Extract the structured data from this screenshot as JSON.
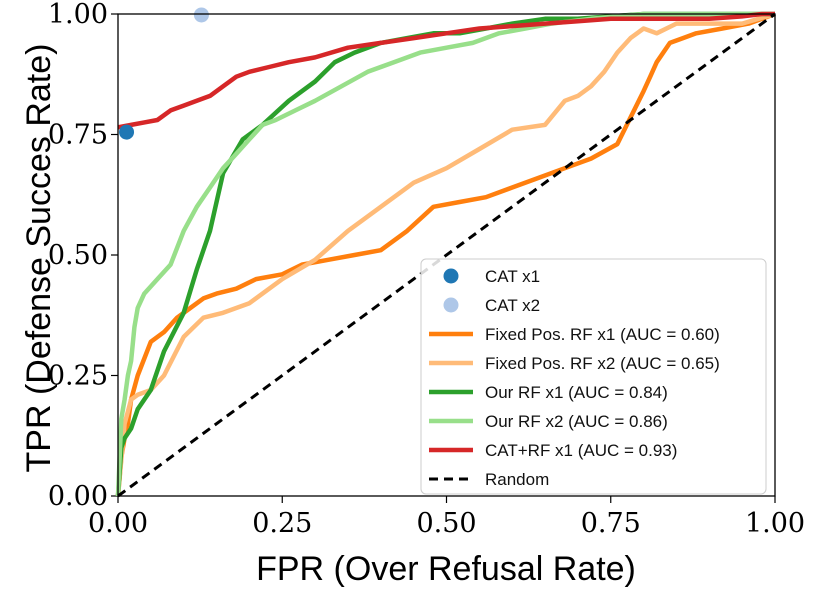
{
  "chart_data": {
    "type": "line",
    "title": "",
    "xlabel": "FPR (Over Refusal Rate)",
    "ylabel": "TPR (Defense Succes Rate)",
    "xlim": [
      0,
      1
    ],
    "ylim": [
      0,
      1
    ],
    "xticks": [
      "0.00",
      "0.25",
      "0.50",
      "0.75",
      "1.00"
    ],
    "yticks": [
      "0.00",
      "0.25",
      "0.50",
      "0.75",
      "1.00"
    ],
    "xtick_values": [
      0,
      0.25,
      0.5,
      0.75,
      1.0
    ],
    "ytick_values": [
      0,
      0.25,
      0.5,
      0.75,
      1.0
    ],
    "grid": false,
    "legend_position": "bottom-right",
    "points": [
      {
        "name": "CAT x1",
        "x": 0.013,
        "y": 0.755,
        "color": "#1f77b4"
      },
      {
        "name": "CAT x2",
        "x": 0.127,
        "y": 0.998,
        "color": "#aec7e8"
      }
    ],
    "series": [
      {
        "name": "Fixed Pos. RF x1 (AUC = 0.60)",
        "color": "#ff7f0e",
        "x": [
          0,
          0.005,
          0.01,
          0.015,
          0.02,
          0.03,
          0.05,
          0.07,
          0.09,
          0.11,
          0.13,
          0.15,
          0.18,
          0.21,
          0.25,
          0.28,
          0.32,
          0.36,
          0.4,
          0.44,
          0.48,
          0.52,
          0.56,
          0.6,
          0.64,
          0.68,
          0.72,
          0.76,
          0.8,
          0.81,
          0.82,
          0.84,
          0.86,
          0.88,
          0.92,
          0.96,
          1.0
        ],
        "y": [
          0,
          0.08,
          0.12,
          0.15,
          0.2,
          0.25,
          0.32,
          0.34,
          0.37,
          0.39,
          0.41,
          0.42,
          0.43,
          0.45,
          0.46,
          0.48,
          0.49,
          0.5,
          0.51,
          0.55,
          0.6,
          0.61,
          0.62,
          0.64,
          0.66,
          0.68,
          0.7,
          0.73,
          0.84,
          0.87,
          0.9,
          0.94,
          0.95,
          0.96,
          0.97,
          0.98,
          1.0
        ]
      },
      {
        "name": "Fixed Pos. RF x2 (AUC = 0.65)",
        "color": "#ffbb78",
        "x": [
          0,
          0.01,
          0.02,
          0.03,
          0.05,
          0.07,
          0.1,
          0.13,
          0.16,
          0.2,
          0.25,
          0.3,
          0.35,
          0.4,
          0.45,
          0.5,
          0.55,
          0.6,
          0.65,
          0.68,
          0.7,
          0.72,
          0.74,
          0.76,
          0.78,
          0.8,
          0.82,
          0.85,
          0.9,
          0.95,
          1.0
        ],
        "y": [
          0,
          0.15,
          0.2,
          0.21,
          0.22,
          0.25,
          0.33,
          0.37,
          0.38,
          0.4,
          0.45,
          0.49,
          0.55,
          0.6,
          0.65,
          0.68,
          0.72,
          0.76,
          0.77,
          0.82,
          0.83,
          0.85,
          0.88,
          0.92,
          0.95,
          0.97,
          0.96,
          0.98,
          0.98,
          0.98,
          1.0
        ]
      },
      {
        "name": "Our RF x1 (AUC = 0.84)",
        "color": "#2ca02c",
        "x": [
          0,
          0.005,
          0.01,
          0.02,
          0.03,
          0.05,
          0.07,
          0.1,
          0.12,
          0.14,
          0.16,
          0.19,
          0.22,
          0.26,
          0.3,
          0.33,
          0.36,
          0.4,
          0.44,
          0.48,
          0.52,
          0.56,
          0.6,
          0.65,
          0.7,
          0.8,
          0.9,
          1.0
        ],
        "y": [
          0,
          0.1,
          0.12,
          0.14,
          0.18,
          0.22,
          0.3,
          0.38,
          0.47,
          0.55,
          0.67,
          0.74,
          0.77,
          0.82,
          0.86,
          0.9,
          0.92,
          0.94,
          0.95,
          0.96,
          0.96,
          0.97,
          0.98,
          0.99,
          0.99,
          1.0,
          1.0,
          1.0
        ]
      },
      {
        "name": "Our RF x2 (AUC = 0.86)",
        "color": "#98df8a",
        "x": [
          0,
          0.005,
          0.01,
          0.015,
          0.02,
          0.025,
          0.03,
          0.04,
          0.06,
          0.08,
          0.1,
          0.12,
          0.14,
          0.16,
          0.18,
          0.2,
          0.22,
          0.24,
          0.27,
          0.3,
          0.34,
          0.38,
          0.42,
          0.46,
          0.5,
          0.54,
          0.58,
          0.62,
          0.66,
          0.72,
          0.8,
          0.9,
          1.0
        ],
        "y": [
          0,
          0.16,
          0.2,
          0.25,
          0.28,
          0.35,
          0.39,
          0.42,
          0.45,
          0.48,
          0.55,
          0.6,
          0.64,
          0.68,
          0.71,
          0.74,
          0.77,
          0.78,
          0.8,
          0.82,
          0.85,
          0.88,
          0.9,
          0.92,
          0.93,
          0.94,
          0.96,
          0.97,
          0.98,
          0.99,
          1.0,
          1.0,
          1.0
        ]
      },
      {
        "name": "CAT+RF x1 (AUC = 0.93)",
        "color": "#d62728",
        "x": [
          0,
          0.02,
          0.04,
          0.06,
          0.08,
          0.1,
          0.12,
          0.14,
          0.16,
          0.18,
          0.2,
          0.23,
          0.26,
          0.3,
          0.35,
          0.4,
          0.45,
          0.5,
          0.55,
          0.6,
          0.65,
          0.7,
          0.75,
          0.8,
          0.85,
          0.9,
          0.95,
          0.98,
          1.0
        ],
        "y": [
          0.765,
          0.77,
          0.775,
          0.78,
          0.8,
          0.81,
          0.82,
          0.83,
          0.85,
          0.87,
          0.88,
          0.89,
          0.9,
          0.91,
          0.93,
          0.94,
          0.95,
          0.96,
          0.97,
          0.975,
          0.98,
          0.985,
          0.99,
          0.99,
          0.99,
          0.99,
          0.995,
          1.0,
          1.0
        ]
      },
      {
        "name": "Random",
        "color": "#000000",
        "dashed": true,
        "x": [
          0,
          1
        ],
        "y": [
          0,
          1
        ]
      }
    ]
  }
}
